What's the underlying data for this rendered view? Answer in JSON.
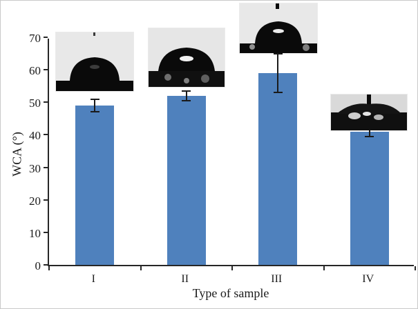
{
  "chart_data": {
    "type": "bar",
    "categories": [
      "I",
      "II",
      "III",
      "IV"
    ],
    "values": [
      49,
      52,
      59,
      41
    ],
    "error_bars": [
      2,
      1.5,
      6,
      1.5
    ],
    "title": "",
    "xlabel": "Type of sample",
    "ylabel": "WCA (°)",
    "ylim": [
      0,
      70
    ],
    "yticks": [
      0,
      10,
      20,
      30,
      40,
      50,
      60,
      70
    ],
    "bar_color": "#4f81bd",
    "grid": false,
    "legend": false,
    "insets": [
      {
        "name": "droplet-photo-sample-I",
        "description": "water droplet on sample I surface"
      },
      {
        "name": "droplet-photo-sample-II",
        "description": "water droplet on sample II surface"
      },
      {
        "name": "droplet-photo-sample-III",
        "description": "water droplet on sample III surface"
      },
      {
        "name": "droplet-photo-sample-IV",
        "description": "water droplet on sample IV surface"
      }
    ]
  }
}
